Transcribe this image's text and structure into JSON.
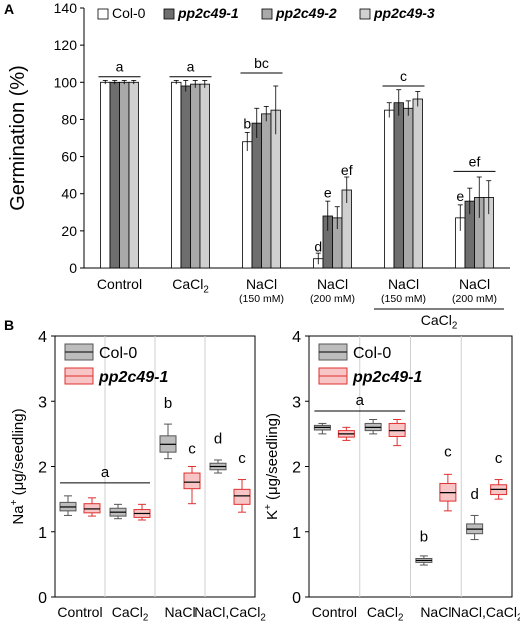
{
  "chart_data": [
    {
      "panel": "A",
      "type": "bar",
      "ylabel": "Germination (%)",
      "ylim": [
        0,
        140
      ],
      "yticks": [
        0,
        20,
        40,
        60,
        80,
        100,
        120,
        140
      ],
      "categories": [
        "Control",
        "CaCl2",
        "NaCl",
        "NaCl",
        "NaCl",
        "NaCl"
      ],
      "category_labels": [
        {
          "main": "Control",
          "sub": ""
        },
        {
          "main": "CaCl",
          "subscript": "2",
          "sub": ""
        },
        {
          "main": "NaCl",
          "sub": "(150 mM)"
        },
        {
          "main": "NaCl",
          "sub": "(200 mM)"
        },
        {
          "main": "NaCl",
          "sub": "(150 mM)"
        },
        {
          "main": "NaCl",
          "sub": "(200 mM)"
        }
      ],
      "group_label": {
        "main": "CaCl",
        "subscript": "2",
        "span": [
          4,
          5
        ]
      },
      "series": [
        {
          "name": "Col-0",
          "color": "#ffffff",
          "values": [
            100,
            100,
            68,
            5,
            85,
            27
          ],
          "errors": [
            1,
            1,
            5,
            3,
            4,
            7
          ]
        },
        {
          "name": "pp2c49-1",
          "color": "#6e6e6e",
          "values": [
            100,
            98,
            78,
            28,
            89,
            36
          ],
          "errors": [
            1,
            3,
            8,
            8,
            7,
            7
          ]
        },
        {
          "name": "pp2c49-2",
          "color": "#a9a9a9",
          "values": [
            100,
            99,
            83,
            27,
            86,
            38
          ],
          "errors": [
            1,
            2,
            4,
            6,
            4,
            11
          ]
        },
        {
          "name": "pp2c49-3",
          "color": "#d0d0d0",
          "values": [
            100,
            99,
            85,
            42,
            91,
            38
          ],
          "errors": [
            1,
            2,
            13,
            7,
            4,
            9
          ]
        }
      ],
      "legend": "top",
      "annotations": [
        {
          "text": "a",
          "group_span": [
            0,
            0
          ],
          "y": 103
        },
        {
          "text": "a",
          "group_span": [
            1,
            1
          ],
          "y": 103
        },
        {
          "text": "bc",
          "group_span": [
            2,
            2
          ],
          "y": 105
        },
        {
          "text": "c",
          "group_span": [
            4,
            4
          ],
          "y": 98
        },
        {
          "text": "ef",
          "group_span": [
            5,
            5
          ],
          "y": 52
        },
        {
          "text": "b",
          "bar": [
            2,
            0
          ],
          "y": 75
        },
        {
          "text": "ef",
          "bar": [
            3,
            3
          ],
          "y": 50
        },
        {
          "text": "e",
          "bar": [
            3,
            1
          ],
          "y": 38
        },
        {
          "text": "d",
          "bar": [
            3,
            0
          ],
          "y": 9
        },
        {
          "text": "e",
          "bar": [
            5,
            0
          ],
          "y": 36
        }
      ]
    },
    {
      "panel": "B",
      "type": "box",
      "ylabel_main": "Na",
      "ylabel_sup": "+",
      "ylabel_rest": " (μg/seedling)",
      "ylim": [
        0,
        4
      ],
      "yticks": [
        0,
        1,
        2,
        3,
        4
      ],
      "categories": [
        "Control",
        "CaCl2",
        "NaCl",
        "NaCl,CaCl2"
      ],
      "category_labels": [
        {
          "main": "Control"
        },
        {
          "main": "CaCl",
          "subscript": "2"
        },
        {
          "main": "NaCl"
        },
        {
          "main": "NaCl,CaCl",
          "subscript": "2"
        }
      ],
      "series": [
        {
          "name": "Col-0",
          "color": "#bdbdbd",
          "edge": "#555555",
          "boxes": [
            {
              "min": 1.25,
              "q1": 1.32,
              "median": 1.38,
              "q3": 1.45,
              "max": 1.55
            },
            {
              "min": 1.2,
              "q1": 1.24,
              "median": 1.3,
              "q3": 1.36,
              "max": 1.42
            },
            {
              "min": 2.12,
              "q1": 2.22,
              "median": 2.34,
              "q3": 2.47,
              "max": 2.65
            },
            {
              "min": 1.9,
              "q1": 1.95,
              "median": 2.0,
              "q3": 2.05,
              "max": 2.1
            }
          ]
        },
        {
          "name": "pp2c49-1",
          "color": "#f7c5c5",
          "edge": "#e03030",
          "boxes": [
            {
              "min": 1.24,
              "q1": 1.29,
              "median": 1.35,
              "q3": 1.43,
              "max": 1.52
            },
            {
              "min": 1.18,
              "q1": 1.22,
              "median": 1.28,
              "q3": 1.34,
              "max": 1.42
            },
            {
              "min": 1.43,
              "q1": 1.66,
              "median": 1.76,
              "q3": 1.9,
              "max": 2.0
            },
            {
              "min": 1.3,
              "q1": 1.42,
              "median": 1.55,
              "q3": 1.65,
              "max": 1.8
            }
          ]
        }
      ],
      "legend": "top-left",
      "annotations": [
        {
          "text": "a",
          "x_group": 1.0,
          "y": 1.75
        },
        {
          "text": "b",
          "box": [
            2,
            0
          ],
          "y": 2.9
        },
        {
          "text": "c",
          "box": [
            2,
            1
          ],
          "y": 2.2
        },
        {
          "text": "d",
          "box": [
            3,
            0
          ],
          "y": 2.35
        },
        {
          "text": "c",
          "box": [
            3,
            1
          ],
          "y": 2.05
        }
      ]
    },
    {
      "panel": "B2",
      "type": "box",
      "ylabel_main": "K",
      "ylabel_sup": "+",
      "ylabel_rest": " (μg/seedling)",
      "ylim": [
        0,
        4
      ],
      "yticks": [
        0,
        1,
        2,
        3,
        4
      ],
      "categories": [
        "Control",
        "CaCl2",
        "NaCl",
        "NaCl,CaCl2"
      ],
      "category_labels": [
        {
          "main": "Control"
        },
        {
          "main": "CaCl",
          "subscript": "2"
        },
        {
          "main": "NaCl"
        },
        {
          "main": "NaCl,CaCl",
          "subscript": "2"
        }
      ],
      "series": [
        {
          "name": "Col-0",
          "color": "#bdbdbd",
          "edge": "#555555",
          "boxes": [
            {
              "min": 2.5,
              "q1": 2.56,
              "median": 2.6,
              "q3": 2.63,
              "max": 2.66
            },
            {
              "min": 2.5,
              "q1": 2.55,
              "median": 2.6,
              "q3": 2.66,
              "max": 2.72
            },
            {
              "min": 0.49,
              "q1": 0.53,
              "median": 0.56,
              "q3": 0.59,
              "max": 0.63
            },
            {
              "min": 0.88,
              "q1": 0.97,
              "median": 1.04,
              "q3": 1.12,
              "max": 1.25
            }
          ]
        },
        {
          "name": "pp2c49-1",
          "color": "#f7c5c5",
          "edge": "#e03030",
          "boxes": [
            {
              "min": 2.4,
              "q1": 2.45,
              "median": 2.5,
              "q3": 2.55,
              "max": 2.6
            },
            {
              "min": 2.32,
              "q1": 2.46,
              "median": 2.55,
              "q3": 2.66,
              "max": 2.72
            },
            {
              "min": 1.32,
              "q1": 1.47,
              "median": 1.6,
              "q3": 1.74,
              "max": 1.88
            },
            {
              "min": 1.5,
              "q1": 1.57,
              "median": 1.65,
              "q3": 1.72,
              "max": 1.8
            }
          ]
        }
      ],
      "legend": "top-left",
      "annotations": [
        {
          "text": "a",
          "x_group": 1.0,
          "y": 2.85
        },
        {
          "text": "b",
          "box": [
            2,
            0
          ],
          "y": 0.85
        },
        {
          "text": "c",
          "box": [
            2,
            1
          ],
          "y": 2.15
        },
        {
          "text": "d",
          "box": [
            3,
            0
          ],
          "y": 1.5
        },
        {
          "text": "c",
          "box": [
            3,
            1
          ],
          "y": 2.05
        }
      ]
    }
  ],
  "panel_labels": [
    "A",
    "B"
  ]
}
